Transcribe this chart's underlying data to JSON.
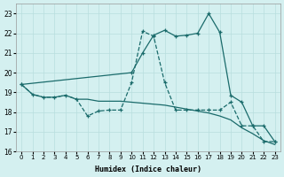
{
  "xlabel": "Humidex (Indice chaleur)",
  "background_color": "#d4f0f0",
  "grid_color": "#b8dede",
  "line_color": "#1a6b6b",
  "xlim": [
    -0.5,
    23.5
  ],
  "ylim": [
    16,
    23.5
  ],
  "yticks": [
    16,
    17,
    18,
    19,
    20,
    21,
    22,
    23
  ],
  "xticks": [
    0,
    1,
    2,
    3,
    4,
    5,
    6,
    7,
    8,
    9,
    10,
    11,
    12,
    13,
    14,
    15,
    16,
    17,
    18,
    19,
    20,
    21,
    22,
    23
  ],
  "lineA_x": [
    0,
    1,
    2,
    3,
    4,
    5,
    6,
    7,
    8,
    9,
    10,
    11,
    12,
    13,
    14,
    15,
    16,
    17,
    18,
    19,
    20,
    21,
    22,
    23
  ],
  "lineA_y": [
    19.4,
    18.9,
    18.75,
    18.75,
    18.85,
    18.65,
    18.65,
    18.55,
    18.55,
    18.55,
    18.5,
    18.45,
    18.4,
    18.35,
    18.25,
    18.15,
    18.05,
    17.95,
    17.8,
    17.6,
    17.2,
    16.9,
    16.55,
    16.35
  ],
  "lineB_x": [
    0,
    10,
    11,
    12,
    13,
    14,
    15,
    16,
    17,
    18,
    19,
    20,
    21,
    22,
    23
  ],
  "lineB_y": [
    19.4,
    20.0,
    21.0,
    21.9,
    22.15,
    21.85,
    21.9,
    22.0,
    23.0,
    22.05,
    18.85,
    18.5,
    17.3,
    17.3,
    16.5
  ],
  "lineC_x": [
    0,
    1,
    2,
    3,
    4,
    5,
    6,
    7,
    8,
    9,
    10,
    11,
    12,
    13,
    14,
    15,
    16,
    17,
    18,
    19,
    20,
    21,
    22,
    23
  ],
  "lineC_y": [
    19.4,
    18.9,
    18.75,
    18.75,
    18.85,
    18.65,
    17.8,
    18.05,
    18.1,
    18.1,
    19.5,
    22.1,
    21.85,
    19.5,
    18.1,
    18.1,
    18.1,
    18.1,
    18.1,
    18.5,
    17.3,
    17.3,
    16.5,
    16.5
  ]
}
